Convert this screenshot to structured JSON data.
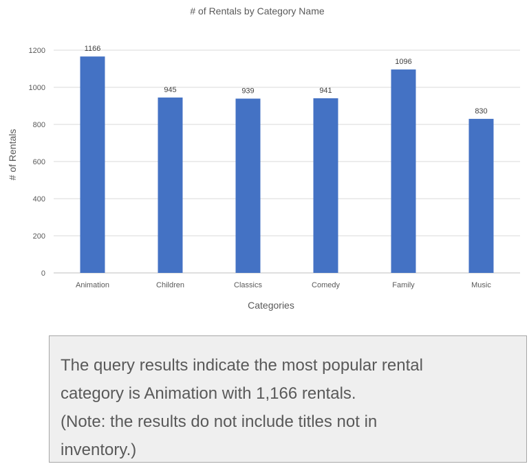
{
  "chart_data": {
    "type": "bar",
    "title": "# of Rentals by Category Name",
    "xlabel": "Categories",
    "ylabel": "# of Rentals",
    "categories": [
      "Animation",
      "Children",
      "Classics",
      "Comedy",
      "Family",
      "Music"
    ],
    "values": [
      1166,
      945,
      939,
      941,
      1096,
      830
    ],
    "data_labels": [
      "1166",
      "945",
      "939",
      "941",
      "1096",
      "830"
    ],
    "yticks": [
      0,
      200,
      400,
      600,
      800,
      1000,
      1200
    ],
    "ylim": [
      0,
      1200
    ],
    "grid": true,
    "legend": "none",
    "bar_color": "#4472c4"
  },
  "note": {
    "lines": [
      "The query results indicate the most popular rental",
      "category is Animation with 1,166 rentals.",
      "(Note: the results do not include titles not in",
      "inventory.)"
    ]
  }
}
